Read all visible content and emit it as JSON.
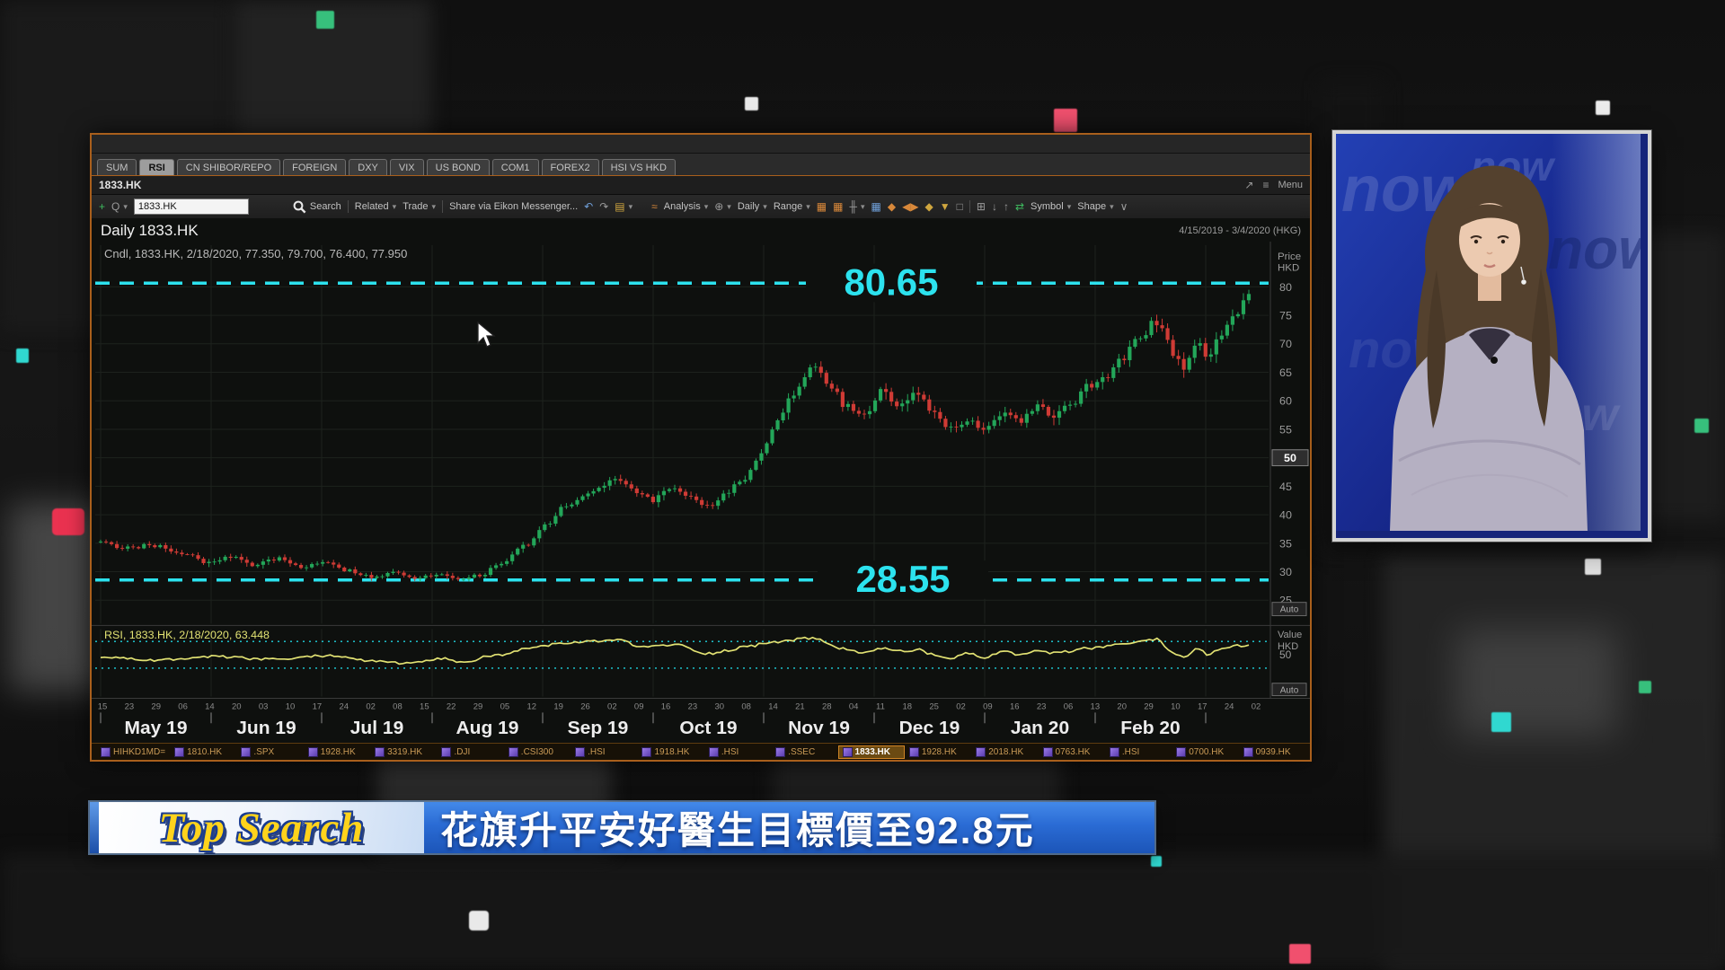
{
  "window": {
    "tabs": [
      "SUM",
      "RSI",
      "CN SHIBOR/REPO",
      "FOREIGN",
      "DXY",
      "VIX",
      "US BOND",
      "COM1",
      "FOREX2",
      "HSI VS HKD"
    ],
    "active_tab": "RSI",
    "symbolbar": {
      "symbol": "1833.HK",
      "menu": "Menu"
    },
    "toolbar": {
      "symbol_value": "1833.HK",
      "search": "Search",
      "related": "Related",
      "trade": "Trade",
      "share": "Share via Eikon Messenger...",
      "analysis": "Analysis",
      "interval": "Daily",
      "range": "Range",
      "symbol": "Symbol",
      "shape": "Shape"
    },
    "ticker": {
      "active": "1833.HK",
      "items": [
        "HIHKD1MD=",
        "1810.HK",
        ".SPX",
        "1928.HK",
        "3319.HK",
        ".DJI",
        ".CSI300",
        ".HSI",
        "1918.HK",
        ".HSI",
        ".SSEC",
        "1833.HK",
        "1928.HK",
        "2018.HK",
        "0763.HK",
        ".HSI",
        "0700.HK",
        "0939.HK"
      ]
    }
  },
  "chart_data": {
    "type": "candlestick",
    "title": "Daily 1833.HK",
    "date_range": "4/15/2019 - 3/4/2020 (HKG)",
    "legend": "Cndl, 1833.HK, 2/18/2020, 77.350, 79.700, 76.400, 77.950",
    "ohlc_last": {
      "date": "2/18/2020",
      "open": 77.35,
      "high": 79.7,
      "low": 76.4,
      "close": 77.95
    },
    "up_color": "#23a659",
    "down_color": "#cf3b35",
    "level_color": "#2ce2ee",
    "grid_color": "#1d221d",
    "ylim": [
      21.5,
      87
    ],
    "levels": [
      {
        "value": 80.65,
        "label": "80.65"
      },
      {
        "value": 28.55,
        "label": "28.55"
      }
    ],
    "price_axis": {
      "label_top": "Price",
      "unit": "HKD",
      "ticks": [
        80,
        75,
        70,
        65,
        60,
        55,
        50,
        45,
        40,
        35,
        30,
        25
      ],
      "highlight_tick": 50,
      "auto": "Auto"
    },
    "months": [
      "May 19",
      "Jun 19",
      "Jul 19",
      "Aug 19",
      "Sep 19",
      "Oct 19",
      "Nov 19",
      "Dec 19",
      "Jan 20",
      "Feb 20"
    ],
    "day_ticks": [
      "15",
      "23",
      "29",
      "06",
      "14",
      "20",
      "03",
      "10",
      "17",
      "24",
      "02",
      "08",
      "15",
      "22",
      "29",
      "05",
      "12",
      "19",
      "26",
      "02",
      "09",
      "16",
      "23",
      "30",
      "08",
      "14",
      "21",
      "28",
      "04",
      "11",
      "18",
      "25",
      "02",
      "09",
      "16",
      "23",
      "06",
      "13",
      "20",
      "29",
      "10",
      "17",
      "24",
      "02"
    ],
    "n_candles": 213,
    "price_path": [
      [
        0,
        35.2
      ],
      [
        0.02,
        34.2
      ],
      [
        0.045,
        34.6
      ],
      [
        0.07,
        33.2
      ],
      [
        0.095,
        31.6
      ],
      [
        0.115,
        32.6
      ],
      [
        0.135,
        31.2
      ],
      [
        0.155,
        32.4
      ],
      [
        0.175,
        30.6
      ],
      [
        0.195,
        31.6
      ],
      [
        0.215,
        30.2
      ],
      [
        0.235,
        29.2
      ],
      [
        0.255,
        29.8
      ],
      [
        0.275,
        28.9
      ],
      [
        0.295,
        29.6
      ],
      [
        0.315,
        28.7
      ],
      [
        0.33,
        29.4
      ],
      [
        0.35,
        31.5
      ],
      [
        0.37,
        34.5
      ],
      [
        0.39,
        38.5
      ],
      [
        0.405,
        41.5
      ],
      [
        0.42,
        43.0
      ],
      [
        0.435,
        44.5
      ],
      [
        0.45,
        46.3
      ],
      [
        0.465,
        44.2
      ],
      [
        0.48,
        42.6
      ],
      [
        0.5,
        44.6
      ],
      [
        0.515,
        43.0
      ],
      [
        0.53,
        41.4
      ],
      [
        0.545,
        43.8
      ],
      [
        0.56,
        46.5
      ],
      [
        0.575,
        50.5
      ],
      [
        0.59,
        56.5
      ],
      [
        0.605,
        61.5
      ],
      [
        0.62,
        65.8
      ],
      [
        0.635,
        62.5
      ],
      [
        0.65,
        59.0
      ],
      [
        0.665,
        57.2
      ],
      [
        0.68,
        61.8
      ],
      [
        0.695,
        59.2
      ],
      [
        0.71,
        61.4
      ],
      [
        0.725,
        57.5
      ],
      [
        0.74,
        55.2
      ],
      [
        0.755,
        56.8
      ],
      [
        0.77,
        54.8
      ],
      [
        0.785,
        57.6
      ],
      [
        0.8,
        56.2
      ],
      [
        0.815,
        58.8
      ],
      [
        0.83,
        57.4
      ],
      [
        0.845,
        59.0
      ],
      [
        0.86,
        62.5
      ],
      [
        0.875,
        64.0
      ],
      [
        0.89,
        67.5
      ],
      [
        0.905,
        71.5
      ],
      [
        0.92,
        74.0
      ],
      [
        0.935,
        68.0
      ],
      [
        0.945,
        65.8
      ],
      [
        0.955,
        70.5
      ],
      [
        0.965,
        67.8
      ],
      [
        0.975,
        71.5
      ],
      [
        0.99,
        75.5
      ],
      [
        1,
        77.9
      ]
    ],
    "rsi": {
      "legend": "RSI, 1833.HK, 2/18/2020, 63.448",
      "last_value": 63.448,
      "color": "#e2e273",
      "upper": 70,
      "lower": 30,
      "value_label": "Value",
      "unit": "HKD",
      "tick": "50",
      "auto": "Auto",
      "path": [
        [
          0,
          46
        ],
        [
          0.05,
          42
        ],
        [
          0.1,
          47
        ],
        [
          0.15,
          43
        ],
        [
          0.2,
          49
        ],
        [
          0.24,
          40
        ],
        [
          0.27,
          37
        ],
        [
          0.3,
          44
        ],
        [
          0.315,
          38
        ],
        [
          0.34,
          48
        ],
        [
          0.37,
          58
        ],
        [
          0.4,
          67
        ],
        [
          0.43,
          70
        ],
        [
          0.45,
          73
        ],
        [
          0.47,
          62
        ],
        [
          0.5,
          65
        ],
        [
          0.53,
          52
        ],
        [
          0.545,
          56
        ],
        [
          0.56,
          62
        ],
        [
          0.59,
          70
        ],
        [
          0.62,
          75
        ],
        [
          0.645,
          60
        ],
        [
          0.665,
          52
        ],
        [
          0.68,
          60
        ],
        [
          0.7,
          55
        ],
        [
          0.71,
          58
        ],
        [
          0.725,
          50
        ],
        [
          0.74,
          44
        ],
        [
          0.755,
          52
        ],
        [
          0.77,
          46
        ],
        [
          0.785,
          55
        ],
        [
          0.8,
          50
        ],
        [
          0.815,
          56
        ],
        [
          0.83,
          52
        ],
        [
          0.845,
          55
        ],
        [
          0.86,
          60
        ],
        [
          0.875,
          62
        ],
        [
          0.89,
          66
        ],
        [
          0.905,
          70
        ],
        [
          0.92,
          73
        ],
        [
          0.935,
          52
        ],
        [
          0.945,
          47
        ],
        [
          0.955,
          60
        ],
        [
          0.965,
          50
        ],
        [
          0.975,
          58
        ],
        [
          0.99,
          64
        ],
        [
          1,
          63.4
        ]
      ]
    }
  },
  "banner": {
    "tag": "Top Search",
    "headline": "花旗升平安好醫生目標價至92.8元"
  },
  "presenter": {
    "watermark": "now"
  },
  "icons": {
    "plus": "+",
    "q": "Q",
    "caret": "▾",
    "undo": "↶",
    "redo": "↷",
    "folder": "▤",
    "analysis": "≈",
    "gear": "⊕",
    "chart1": "▦",
    "chart2": "▦",
    "axis": "╫",
    "chart3": "▦",
    "diamond": "◆",
    "arrows": "◀▶",
    "diamond2": "◆",
    "tri": "▼",
    "box": "□",
    "expand": "⊞",
    "down": "↓",
    "up": "↑",
    "swap": "⇄",
    "chevron": "∨",
    "arrow-out": "↗",
    "menu": "≡"
  }
}
